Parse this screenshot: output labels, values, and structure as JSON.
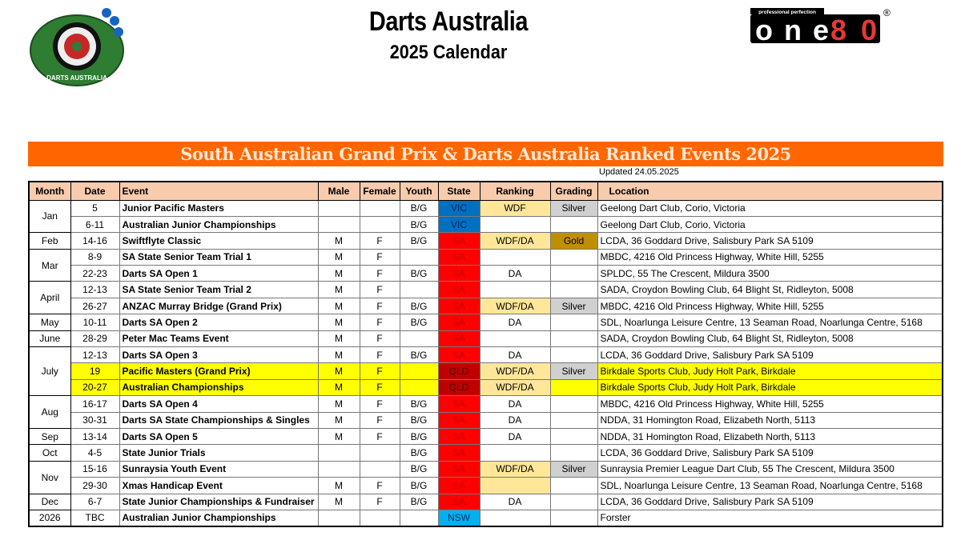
{
  "header": {
    "title": "Darts Australia",
    "subtitle": "2025 Calendar",
    "logo_left_text": "DARTS AUSTRALIA",
    "logo_right_text": "one80",
    "logo_right_tagline": "professional perfection"
  },
  "banner": "South Australian Grand Prix & Darts Australia Ranked Events 2025",
  "updated": "Updated 24.05.2025",
  "columns": [
    "Month",
    "Date",
    "Event",
    "Male",
    "Female",
    "Youth",
    "State",
    "Ranking",
    "Grading",
    "Location"
  ],
  "colors": {
    "banner": "#ff6600",
    "header": "#f8cbad",
    "SA": "#ff0000",
    "VIC": "#0070c0",
    "QLD": "#c00000",
    "NSW": "#00b0f0",
    "ranking": "#ffe699",
    "Silver": "#d0d0d0",
    "Gold": "#bf8f00",
    "highlight": "#ffff00"
  },
  "months": [
    {
      "label": "Jan",
      "span": 2
    },
    {
      "label": "Feb",
      "span": 1
    },
    {
      "label": "Mar",
      "span": 2
    },
    {
      "label": "April",
      "span": 2
    },
    {
      "label": "May",
      "span": 1
    },
    {
      "label": "June",
      "span": 1
    },
    {
      "label": "July",
      "span": 3
    },
    {
      "label": "Aug",
      "span": 2
    },
    {
      "label": "Sep",
      "span": 1
    },
    {
      "label": "Oct",
      "span": 1
    },
    {
      "label": "Nov",
      "span": 2
    },
    {
      "label": "Dec",
      "span": 1
    },
    {
      "label": "2026",
      "span": 1
    }
  ],
  "rows": [
    {
      "date": "5",
      "event": "Junior Pacific Masters",
      "male": "",
      "female": "",
      "youth": "B/G",
      "state": "VIC",
      "ranking": "WDF",
      "grading": "Silver",
      "location": "Geelong Dart Club, Corio, Victoria"
    },
    {
      "date": "6-11",
      "event": "Australian Junior Championships",
      "male": "",
      "female": "",
      "youth": "B/G",
      "state": "VIC",
      "ranking": "",
      "grading": "",
      "location": "Geelong Dart Club, Corio, Victoria"
    },
    {
      "date": "14-16",
      "event": "Swiftflyte Classic",
      "male": "M",
      "female": "F",
      "youth": "B/G",
      "state": "SA",
      "ranking": "WDF/DA",
      "grading": "Gold",
      "location": "LCDA, 36 Goddard Drive, Salisbury Park SA 5109"
    },
    {
      "date": "8-9",
      "event": "SA State Senior Team Trial 1",
      "male": "M",
      "female": "F",
      "youth": "",
      "state": "SA",
      "ranking": "",
      "grading": "",
      "location": "MBDC, 4216 Old Princess Highway, White Hill, 5255"
    },
    {
      "date": "22-23",
      "event": "Darts SA Open 1",
      "male": "M",
      "female": "F",
      "youth": "B/G",
      "state": "SA",
      "ranking": "DA",
      "grading": "",
      "location": "SPLDC, 55 The Crescent, Mildura 3500"
    },
    {
      "date": "12-13",
      "event": "SA State Senior Team Trial 2",
      "male": "M",
      "female": "F",
      "youth": "",
      "state": "SA",
      "ranking": "",
      "grading": "",
      "location": "SADA, Croydon Bowling Club, 64 Blight St, Ridleyton, 5008"
    },
    {
      "date": "26-27",
      "event": "ANZAC Murray Bridge (Grand Prix)",
      "male": "M",
      "female": "F",
      "youth": "B/G",
      "state": "SA",
      "ranking": "WDF/DA",
      "grading": "Silver",
      "location": "MBDC, 4216 Old Princess Highway, White Hill, 5255"
    },
    {
      "date": "10-11",
      "event": "Darts SA Open 2",
      "male": "M",
      "female": "F",
      "youth": "B/G",
      "state": "SA",
      "ranking": "DA",
      "grading": "",
      "location": "SDL, Noarlunga Leisure Centre, 13 Seaman Road, Noarlunga Centre, 5168"
    },
    {
      "date": "28-29",
      "event": "Peter Mac Teams Event",
      "male": "M",
      "female": "F",
      "youth": "",
      "state": "SA",
      "ranking": "",
      "grading": "",
      "location": "SADA, Croydon Bowling Club, 64 Blight St, Ridleyton, 5008"
    },
    {
      "date": "12-13",
      "event": "Darts SA Open 3",
      "male": "M",
      "female": "F",
      "youth": "B/G",
      "state": "SA",
      "ranking": "DA",
      "grading": "",
      "location": "LCDA, 36 Goddard Drive, Salisbury Park SA 5109"
    },
    {
      "date": "19",
      "event": "Pacific Masters (Grand Prix)",
      "male": "M",
      "female": "F",
      "youth": "",
      "state": "QLD",
      "ranking": "WDF/DA",
      "grading": "Silver",
      "location": "Birkdale Sports Club, Judy Holt Park, Birkdale",
      "highlight": true
    },
    {
      "date": "20-27",
      "event": "Australian Championships",
      "male": "M",
      "female": "F",
      "youth": "",
      "state": "QLD",
      "ranking": "WDF/DA",
      "grading": "",
      "location": "Birkdale Sports Club, Judy Holt Park, Birkdale",
      "highlight": true
    },
    {
      "date": "16-17",
      "event": "Darts SA Open 4",
      "male": "M",
      "female": "F",
      "youth": "B/G",
      "state": "SA",
      "ranking": "DA",
      "grading": "",
      "location": "MBDC, 4216 Old Princess Highway, White Hill, 5255"
    },
    {
      "date": "30-31",
      "event": "Darts SA State Championships & Singles",
      "male": "M",
      "female": "F",
      "youth": "B/G",
      "state": "SA",
      "ranking": "DA",
      "grading": "",
      "location": "NDDA, 31 Homington Road, Elizabeth North, 5113"
    },
    {
      "date": "13-14",
      "event": "Darts SA Open 5",
      "male": "M",
      "female": "F",
      "youth": "B/G",
      "state": "SA",
      "ranking": "DA",
      "grading": "",
      "location": "NDDA, 31 Homington Road, Elizabeth North, 5113"
    },
    {
      "date": "4-5",
      "event": "State Junior Trials",
      "male": "",
      "female": "",
      "youth": "B/G",
      "state": "SA",
      "ranking": "",
      "grading": "",
      "location": "LCDA, 36 Goddard Drive, Salisbury Park SA 5109"
    },
    {
      "date": "15-16",
      "event": "Sunraysia Youth Event",
      "male": "",
      "female": "",
      "youth": "B/G",
      "state": "SA",
      "ranking": "WDF/DA",
      "grading": "Silver",
      "location": "Sunraysia Premier League Dart Club, 55 The Crescent, Mildura 3500"
    },
    {
      "date": "29-30",
      "event": "Xmas Handicap Event",
      "male": "M",
      "female": "F",
      "youth": "B/G",
      "state": "SA",
      "ranking": "",
      "rankingFill": true,
      "grading": "",
      "location": "SDL, Noarlunga Leisure Centre, 13 Seaman Road, Noarlunga Centre, 5168"
    },
    {
      "date": "6-7",
      "event": "State Junior Championships & Fundraiser",
      "male": "M",
      "female": "F",
      "youth": "B/G",
      "state": "SA",
      "ranking": "DA",
      "grading": "",
      "location": "LCDA, 36 Goddard Drive, Salisbury Park SA 5109"
    },
    {
      "date": "TBC",
      "event": "Australian Junior Championships",
      "male": "",
      "female": "",
      "youth": "",
      "state": "NSW",
      "ranking": "",
      "grading": "",
      "location": "Forster"
    }
  ]
}
